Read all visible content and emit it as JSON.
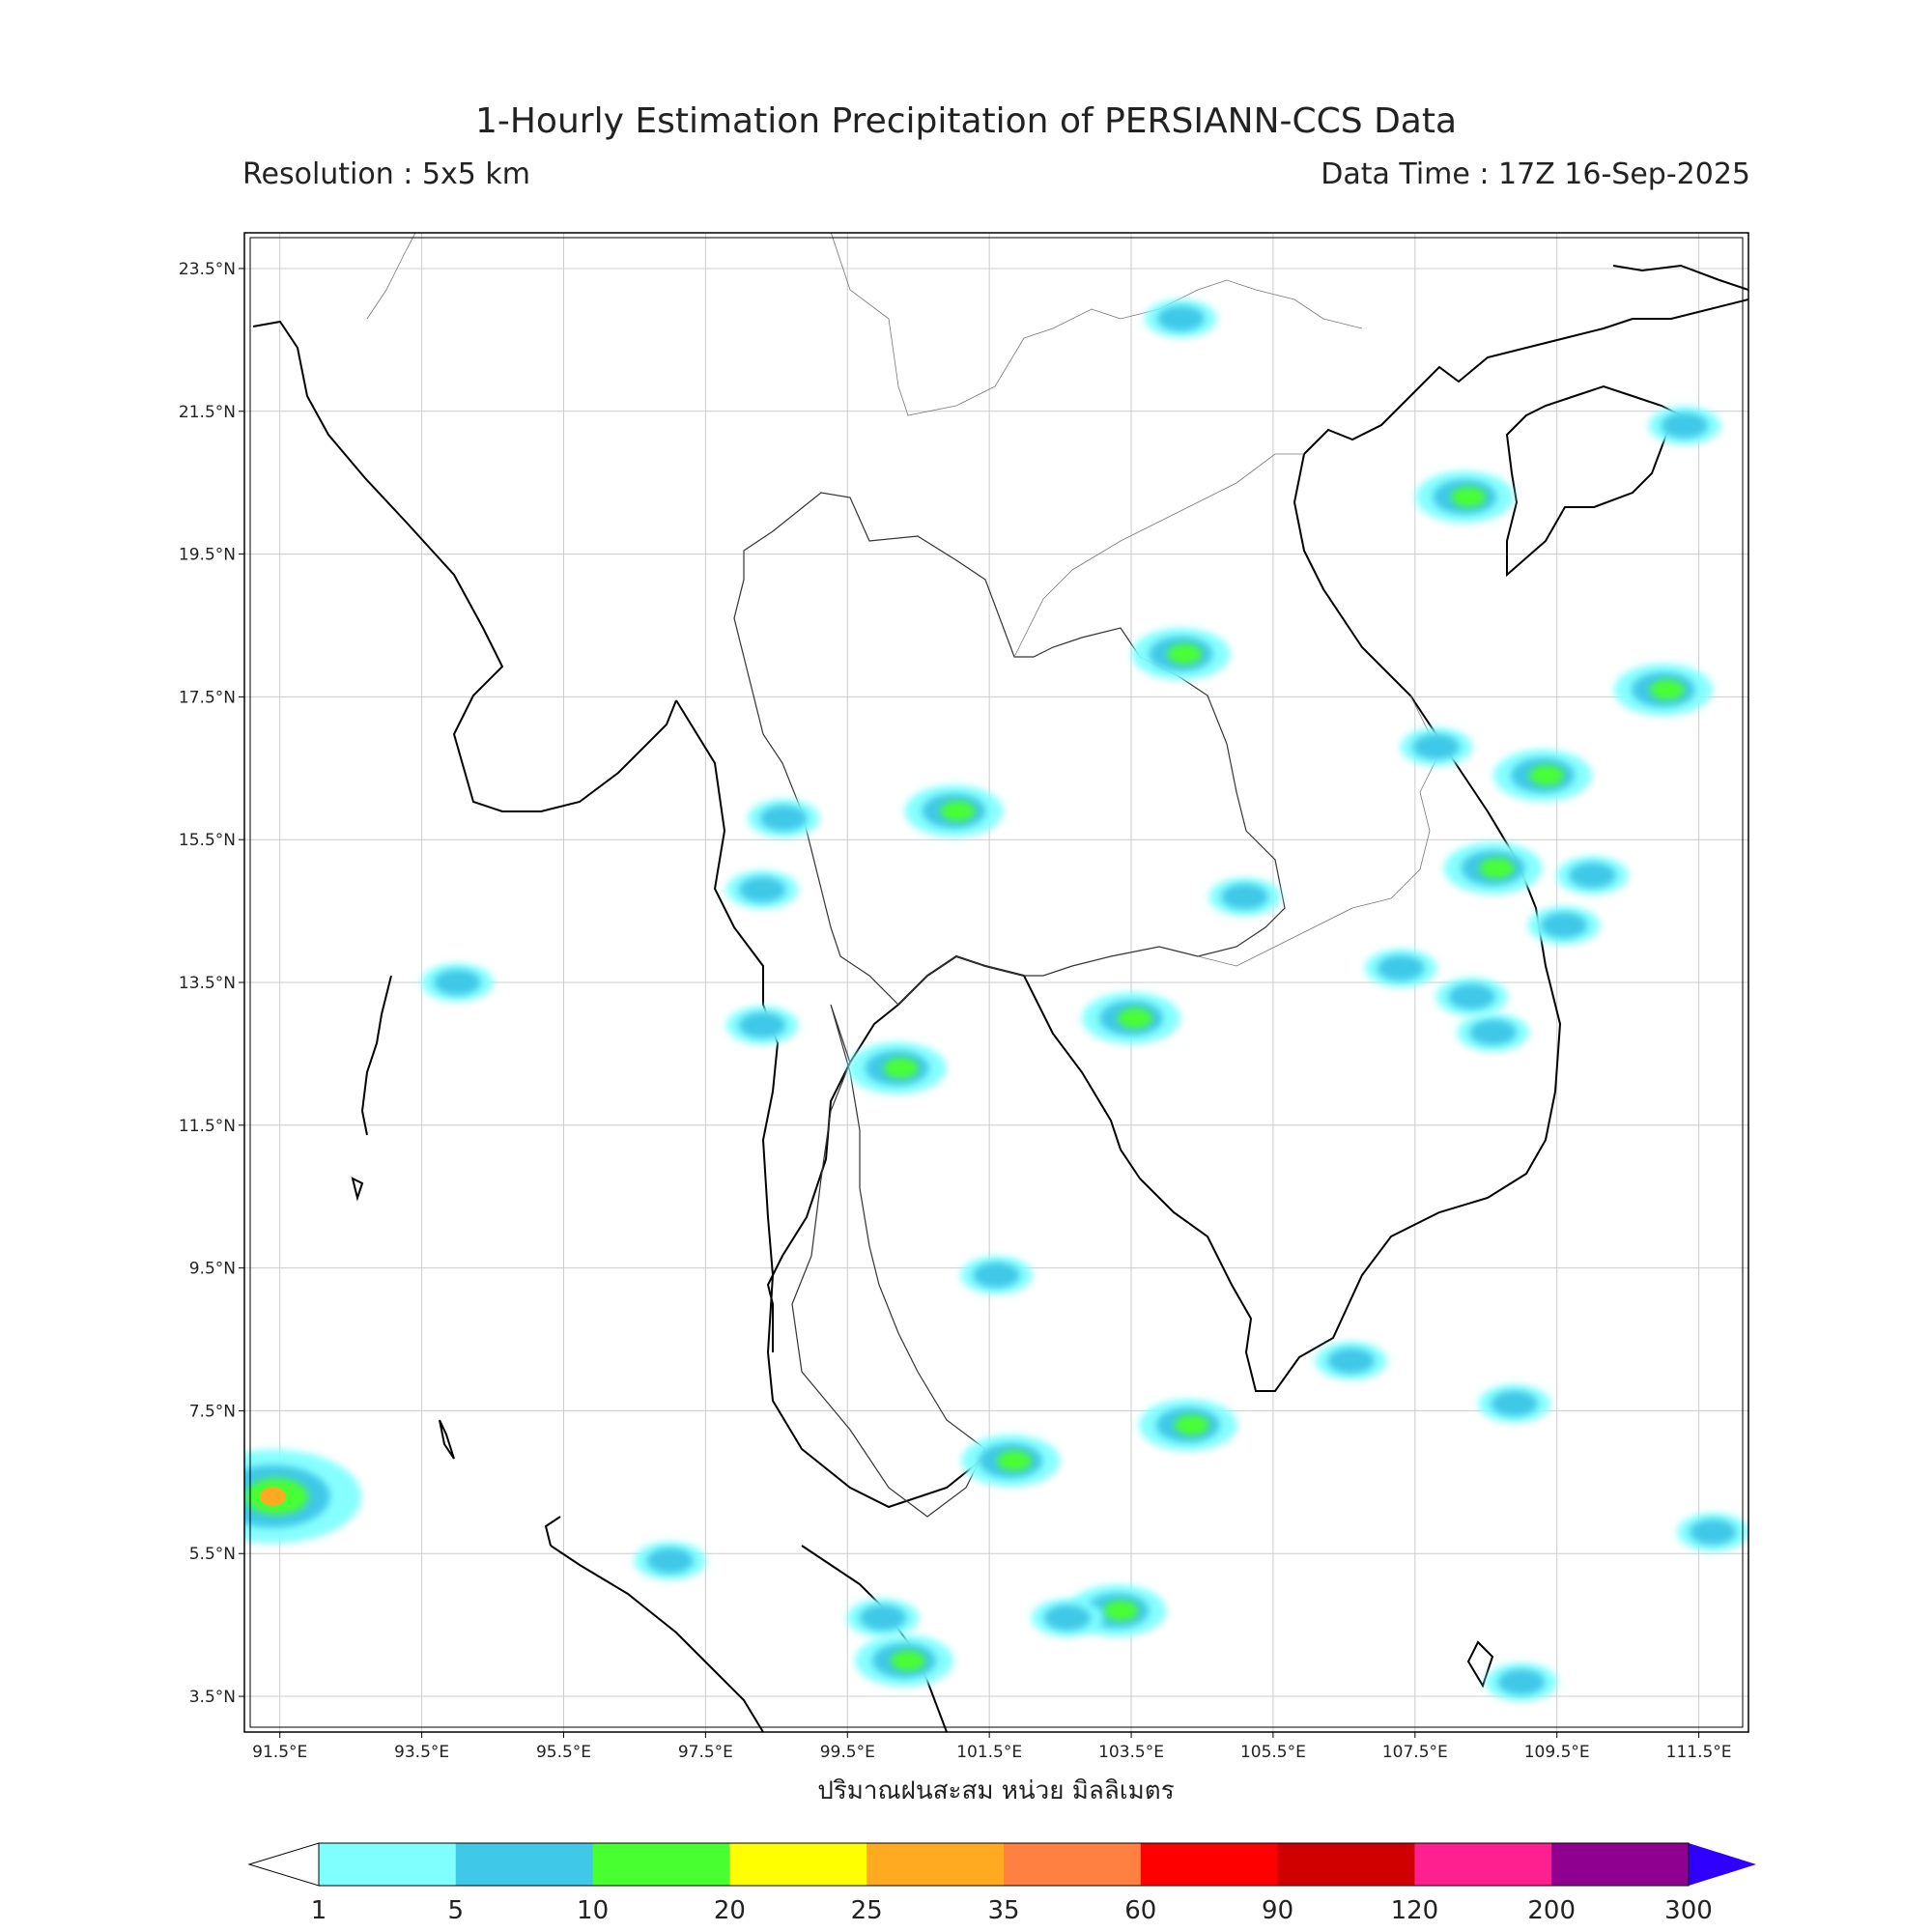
{
  "header": {
    "title": "1-Hourly Estimation Precipitation of PERSIANN-CCS Data",
    "resolution": "Resolution : 5x5 km",
    "data_time": "Data Time : 17Z 16-Sep-2025"
  },
  "map": {
    "lon_ticks": [
      "91.5°E",
      "93.5°E",
      "95.5°E",
      "97.5°E",
      "99.5°E",
      "101.5°E",
      "103.5°E",
      "105.5°E",
      "107.5°E",
      "109.5°E",
      "111.5°E"
    ],
    "lat_ticks": [
      "23.5°N",
      "21.5°N",
      "19.5°N",
      "17.5°N",
      "15.5°N",
      "13.5°N",
      "11.5°N",
      "9.5°N",
      "7.5°N",
      "5.5°N",
      "3.5°N"
    ],
    "xlabel": "ปริมาณฝนสะสม หน่วย มิลลิเมตร",
    "colorbar": {
      "levels": [
        "1",
        "5",
        "10",
        "20",
        "25",
        "35",
        "60",
        "90",
        "120",
        "200",
        "300"
      ],
      "colors": [
        "#80ffff",
        "#40c8e8",
        "#48ff30",
        "#ffff00",
        "#ffaa20",
        "#ff8040",
        "#ff0000",
        "#d00000",
        "#ff2090",
        "#900090"
      ],
      "over_color": "#3000ff",
      "under_color": "#ffffff"
    }
  },
  "chart_data": {
    "type": "heatmap",
    "title": "1-Hourly Estimation Precipitation of PERSIANN-CCS Data",
    "xlabel": "ปริมาณฝนสะสม หน่วย มิลลิเมตร",
    "xlim": [
      91,
      112.2
    ],
    "ylim": [
      3,
      24
    ],
    "units": "mm",
    "rain_cells": [
      {
        "lon": 98.6,
        "lat": 15.8,
        "mm": 5
      },
      {
        "lon": 98.3,
        "lat": 14.8,
        "mm": 5
      },
      {
        "lon": 100.2,
        "lat": 12.3,
        "mm": 10
      },
      {
        "lon": 101.0,
        "lat": 15.9,
        "mm": 10
      },
      {
        "lon": 103.5,
        "lat": 13.0,
        "mm": 10
      },
      {
        "lon": 108.6,
        "lat": 15.1,
        "mm": 10
      },
      {
        "lon": 109.3,
        "lat": 16.4,
        "mm": 10
      },
      {
        "lon": 108.6,
        "lat": 12.8,
        "mm": 5
      },
      {
        "lon": 107.8,
        "lat": 16.8,
        "mm": 5
      },
      {
        "lon": 107.3,
        "lat": 13.7,
        "mm": 5
      },
      {
        "lon": 108.3,
        "lat": 13.3,
        "mm": 5
      },
      {
        "lon": 103.3,
        "lat": 4.7,
        "mm": 10
      },
      {
        "lon": 102.6,
        "lat": 4.6,
        "mm": 5
      },
      {
        "lon": 100.3,
        "lat": 4.0,
        "mm": 10
      },
      {
        "lon": 100.0,
        "lat": 4.6,
        "mm": 5
      },
      {
        "lon": 101.8,
        "lat": 6.8,
        "mm": 10
      },
      {
        "lon": 106.6,
        "lat": 8.2,
        "mm": 5
      },
      {
        "lon": 108.9,
        "lat": 7.6,
        "mm": 5
      },
      {
        "lon": 111.3,
        "lat": 21.3,
        "mm": 5
      },
      {
        "lon": 111.0,
        "lat": 17.6,
        "mm": 10
      },
      {
        "lon": 110.0,
        "lat": 15.0,
        "mm": 5
      },
      {
        "lon": 109.6,
        "lat": 14.3,
        "mm": 5
      },
      {
        "lon": 104.2,
        "lat": 18.1,
        "mm": 10
      },
      {
        "lon": 108.2,
        "lat": 20.3,
        "mm": 10
      },
      {
        "lon": 104.2,
        "lat": 22.8,
        "mm": 5
      },
      {
        "lon": 91.4,
        "lat": 6.3,
        "mm": 25
      },
      {
        "lon": 101.6,
        "lat": 9.4,
        "mm": 5
      },
      {
        "lon": 104.3,
        "lat": 7.3,
        "mm": 10
      },
      {
        "lon": 105.1,
        "lat": 14.7,
        "mm": 5
      },
      {
        "lon": 97.0,
        "lat": 5.4,
        "mm": 5
      },
      {
        "lon": 98.3,
        "lat": 12.9,
        "mm": 5
      },
      {
        "lon": 94.0,
        "lat": 13.5,
        "mm": 5
      },
      {
        "lon": 111.7,
        "lat": 5.8,
        "mm": 5
      },
      {
        "lon": 109.0,
        "lat": 3.7,
        "mm": 5
      }
    ]
  }
}
